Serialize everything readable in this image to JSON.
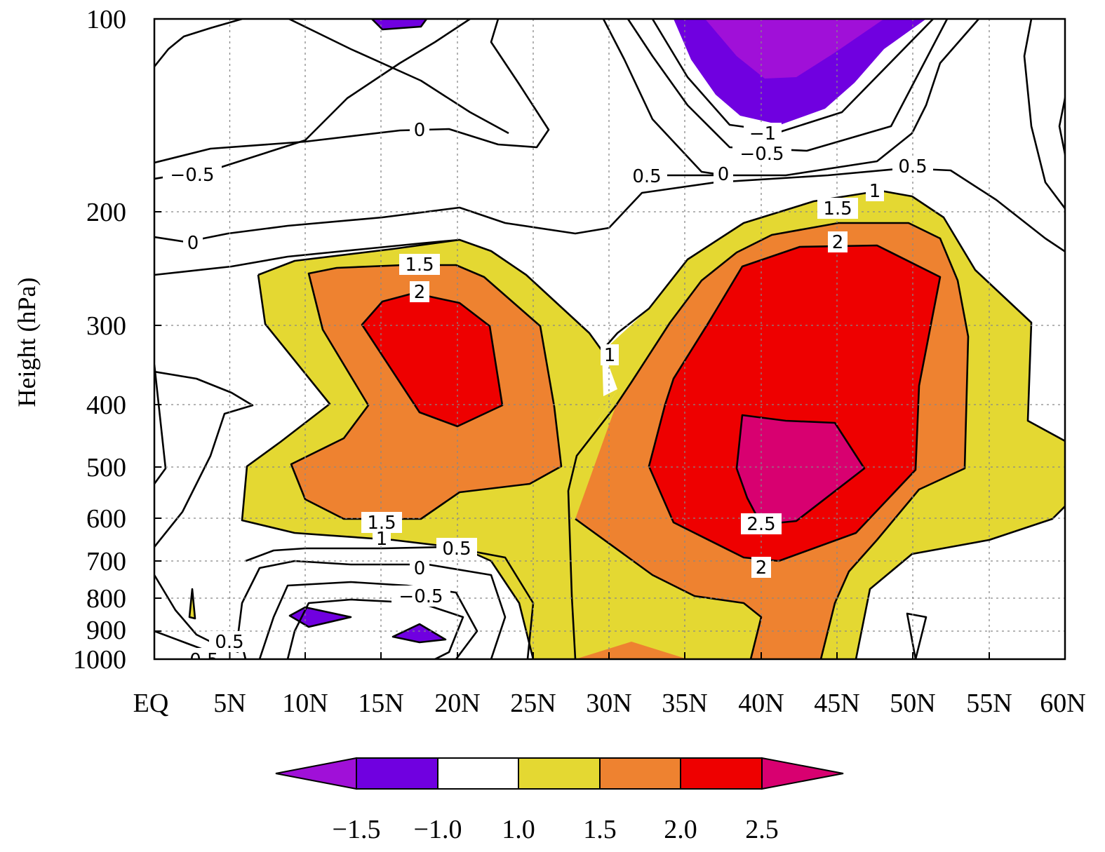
{
  "chart_data": {
    "type": "contour",
    "ylabel": "Height (hPa)",
    "xlabel": "",
    "x_ticks": [
      "EQ",
      "5N",
      "10N",
      "15N",
      "20N",
      "25N",
      "30N",
      "35N",
      "40N",
      "45N",
      "50N",
      "55N",
      "60N"
    ],
    "x_range": [
      0,
      60
    ],
    "y_ticks": [
      "100",
      "200",
      "300",
      "400",
      "500",
      "600",
      "700",
      "800",
      "900",
      "1000"
    ],
    "y_range": [
      1000,
      100
    ],
    "y_scale": "log",
    "grid": true,
    "colorbar": {
      "orientation": "horizontal",
      "placement": "bottom",
      "levels": [
        "−1.5",
        "−1.0",
        "1.0",
        "1.5",
        "2.0",
        "2.5"
      ],
      "colors": [
        "#a010d8",
        "#7000e0",
        "#ffffff",
        "#e4d832",
        "#ee8230",
        "#ee0000",
        "#d80070"
      ]
    },
    "fill_colors": {
      "lt_neg1_5": "#a010d8",
      "neg1_5_to_neg1": "#7000e0",
      "neg1_to_1": "#ffffff",
      "1_to_1_5": "#e4d832",
      "1_5_to_2": "#ee8230",
      "2_to_2_5": "#ee0000",
      "gt_2_5": "#d80070"
    },
    "contour_labels": [
      "0",
      "−0.5",
      "0",
      "−1",
      "−0.5",
      "0",
      "0.5",
      "0.5",
      "1",
      "1.5",
      "2",
      "1.5",
      "2",
      "1",
      "2.5",
      "2",
      "1.5",
      "1",
      "0.5",
      "0",
      "−0.5",
      "0.5",
      "−0.5"
    ]
  }
}
